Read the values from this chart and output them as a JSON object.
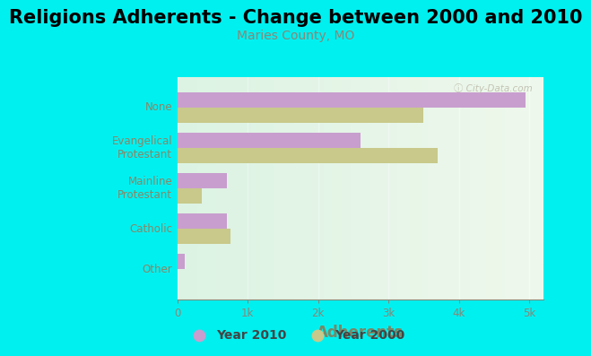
{
  "title": "Religions Adherents - Change between 2000 and 2010",
  "subtitle": "Maries County, MO",
  "xlabel": "Adherents",
  "categories": [
    "Other",
    "Catholic",
    "Mainline\nProtestant",
    "Evangelical\nProtestant",
    "None"
  ],
  "year2010": [
    100,
    700,
    700,
    2600,
    4950
  ],
  "year2000": [
    0,
    750,
    350,
    3700,
    3500
  ],
  "color_2010": "#c89ece",
  "color_2000": "#c8c98a",
  "bg_outer": "#00f0f0",
  "bg_plot_left": "#c5f0d8",
  "bg_plot_right": "#f0f8ee",
  "xlim": [
    0,
    5200
  ],
  "xticks": [
    0,
    1000,
    2000,
    3000,
    4000,
    5000
  ],
  "xticklabels": [
    "0",
    "1k",
    "2k",
    "3k",
    "4k",
    "5k"
  ],
  "title_fontsize": 15,
  "subtitle_fontsize": 10,
  "xlabel_fontsize": 12,
  "bar_height": 0.38,
  "label_color": "#888866",
  "xlabel_color": "#778866",
  "tick_color": "#888877"
}
